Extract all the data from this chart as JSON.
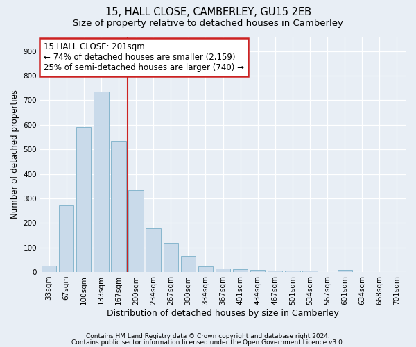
{
  "title1": "15, HALL CLOSE, CAMBERLEY, GU15 2EB",
  "title2": "Size of property relative to detached houses in Camberley",
  "xlabel": "Distribution of detached houses by size in Camberley",
  "ylabel": "Number of detached properties",
  "categories": [
    "33sqm",
    "67sqm",
    "100sqm",
    "133sqm",
    "167sqm",
    "200sqm",
    "234sqm",
    "267sqm",
    "300sqm",
    "334sqm",
    "367sqm",
    "401sqm",
    "434sqm",
    "467sqm",
    "501sqm",
    "534sqm",
    "567sqm",
    "601sqm",
    "634sqm",
    "668sqm",
    "701sqm"
  ],
  "values": [
    25,
    270,
    590,
    735,
    535,
    335,
    178,
    120,
    65,
    22,
    15,
    10,
    8,
    6,
    5,
    5,
    0,
    8,
    0,
    0,
    0
  ],
  "bar_color": "#c9daea",
  "bar_edge_color": "#7aafc8",
  "property_line_x": 4.5,
  "property_line_color": "#cc2222",
  "annotation_text": "15 HALL CLOSE: 201sqm\n← 74% of detached houses are smaller (2,159)\n25% of semi-detached houses are larger (740) →",
  "annotation_box_color": "#cc2222",
  "ylim": [
    0,
    960
  ],
  "yticks": [
    0,
    100,
    200,
    300,
    400,
    500,
    600,
    700,
    800,
    900
  ],
  "footer1": "Contains HM Land Registry data © Crown copyright and database right 2024.",
  "footer2": "Contains public sector information licensed under the Open Government Licence v3.0.",
  "bg_color": "#e8eef5",
  "plot_bg_color": "#e8eef5",
  "grid_color": "#ffffff",
  "title1_fontsize": 10.5,
  "title2_fontsize": 9.5,
  "xlabel_fontsize": 9,
  "ylabel_fontsize": 8.5,
  "tick_fontsize": 7.5,
  "footer_fontsize": 6.5,
  "annot_fontsize": 8.5
}
